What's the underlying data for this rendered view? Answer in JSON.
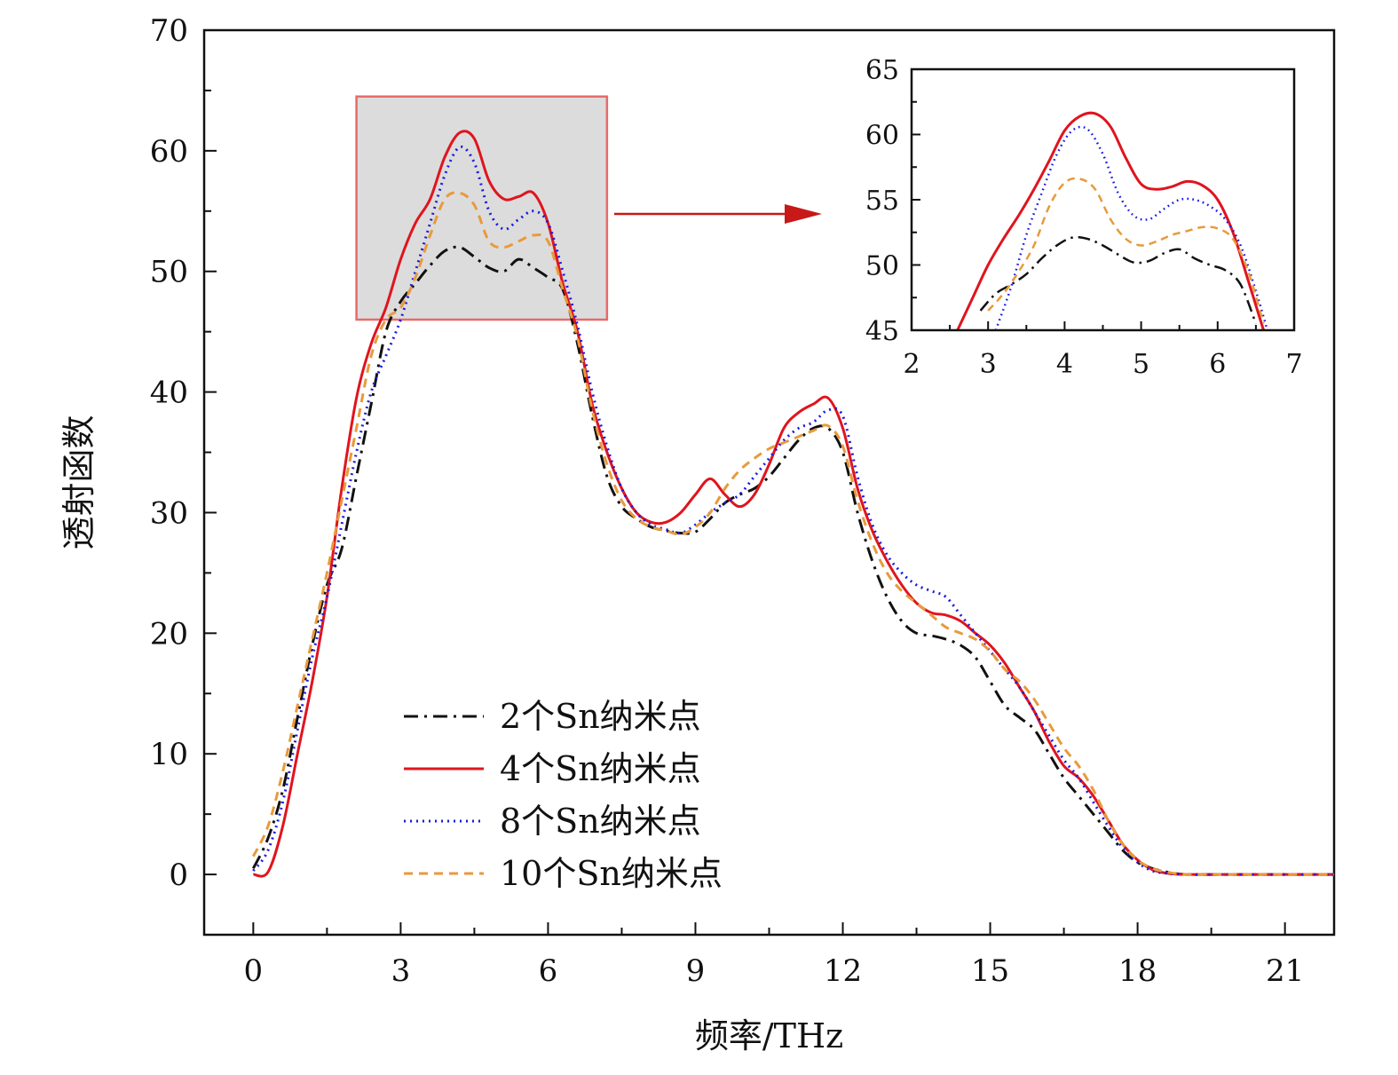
{
  "chart_data": {
    "type": "line",
    "title": "",
    "xlabel": "频率/THz",
    "ylabel": "透射函数",
    "xlim": [
      -1,
      22
    ],
    "ylim": [
      -5,
      70
    ],
    "xticks": [
      0,
      3,
      6,
      9,
      12,
      15,
      18,
      21
    ],
    "yticks": [
      0,
      10,
      20,
      30,
      40,
      50,
      60,
      70
    ],
    "grid": false,
    "legend_position": "lower-center",
    "highlight_region": {
      "x": [
        2.1,
        7.2
      ],
      "y": [
        46,
        64.5
      ]
    },
    "series": [
      {
        "name": "2个Sn纳米点",
        "color": "#111111",
        "style": "dash-dot",
        "x": [
          0,
          0.3,
          0.6,
          0.9,
          1.2,
          1.5,
          1.8,
          2.1,
          2.4,
          2.7,
          3.0,
          3.3,
          3.6,
          3.9,
          4.2,
          4.5,
          4.8,
          5.1,
          5.4,
          5.7,
          6.0,
          6.3,
          6.6,
          6.9,
          7.2,
          7.5,
          7.8,
          8.1,
          8.4,
          8.7,
          9.0,
          9.3,
          9.6,
          9.9,
          10.2,
          10.5,
          10.8,
          11.1,
          11.4,
          11.7,
          12.0,
          12.3,
          12.6,
          12.9,
          13.2,
          13.5,
          13.8,
          14.1,
          14.4,
          14.7,
          15.0,
          15.3,
          15.6,
          15.9,
          16.2,
          16.5,
          16.8,
          17.1,
          17.4,
          17.7,
          18.0,
          18.3,
          18.6,
          19.0,
          20.0,
          21.0,
          22.0
        ],
        "y": [
          0.5,
          3,
          7,
          13,
          19,
          24,
          27,
          33,
          39,
          45,
          47.5,
          49,
          50.5,
          51.7,
          52,
          51.2,
          50.3,
          50,
          51,
          50.3,
          49.5,
          48.5,
          44,
          38,
          33,
          30.5,
          29.5,
          28.8,
          28.5,
          28.3,
          28.4,
          29.5,
          30.8,
          31.5,
          32,
          33,
          34.5,
          36,
          37,
          37,
          35,
          30,
          26,
          23,
          21,
          20,
          19.8,
          19.5,
          19,
          18,
          16,
          14,
          13,
          12,
          10,
          8,
          6.5,
          5,
          3.5,
          2,
          1,
          0.5,
          0.2,
          0,
          0,
          0,
          0
        ]
      },
      {
        "name": "4个Sn纳米点",
        "color": "#e0141e",
        "style": "solid",
        "x": [
          0,
          0.3,
          0.6,
          0.9,
          1.2,
          1.5,
          1.8,
          2.1,
          2.4,
          2.7,
          3.0,
          3.3,
          3.6,
          3.9,
          4.2,
          4.5,
          4.8,
          5.1,
          5.4,
          5.7,
          6.0,
          6.3,
          6.6,
          6.9,
          7.2,
          7.5,
          7.8,
          8.1,
          8.4,
          8.7,
          9.0,
          9.3,
          9.6,
          9.9,
          10.2,
          10.5,
          10.8,
          11.1,
          11.4,
          11.7,
          12.0,
          12.3,
          12.6,
          12.9,
          13.2,
          13.5,
          13.8,
          14.1,
          14.4,
          14.7,
          15.0,
          15.3,
          15.6,
          15.9,
          16.2,
          16.5,
          16.8,
          17.1,
          17.4,
          17.7,
          18.0,
          18.3,
          18.6,
          19.0,
          20.0,
          21.0,
          22.0
        ],
        "y": [
          0,
          0.2,
          4,
          10,
          16,
          23,
          32,
          39.5,
          44,
          47,
          51,
          54,
          56,
          59.5,
          61.5,
          61,
          57.5,
          56,
          56.2,
          56.5,
          54,
          49,
          45,
          39,
          35,
          32,
          30,
          29.2,
          29.2,
          30,
          31.5,
          32.8,
          31.5,
          30.5,
          31.5,
          34,
          37,
          38.3,
          39,
          39.5,
          37,
          32,
          28.5,
          26,
          24,
          22.5,
          21.7,
          21.5,
          21,
          20,
          19,
          17.5,
          15.5,
          13.5,
          11,
          9,
          8,
          6.5,
          4.5,
          2.5,
          1.2,
          0.4,
          0.1,
          0,
          0,
          0,
          0
        ]
      },
      {
        "name": "8个Sn纳米点",
        "color": "#1a1ae0",
        "style": "dotted",
        "x": [
          0,
          0.3,
          0.6,
          0.9,
          1.2,
          1.5,
          1.8,
          2.1,
          2.4,
          2.7,
          3.0,
          3.3,
          3.6,
          3.9,
          4.2,
          4.5,
          4.8,
          5.1,
          5.4,
          5.7,
          6.0,
          6.3,
          6.6,
          6.9,
          7.2,
          7.5,
          7.8,
          8.1,
          8.4,
          8.7,
          9.0,
          9.3,
          9.6,
          9.9,
          10.2,
          10.5,
          10.8,
          11.1,
          11.4,
          11.7,
          12.0,
          12.3,
          12.6,
          12.9,
          13.2,
          13.5,
          13.8,
          14.1,
          14.4,
          14.7,
          15.0,
          15.3,
          15.6,
          15.9,
          16.2,
          16.5,
          16.8,
          17.1,
          17.4,
          17.7,
          18.0,
          18.3,
          18.6,
          19.0,
          20.0,
          21.0,
          22.0
        ],
        "y": [
          0.3,
          2,
          6,
          12,
          18,
          23,
          29,
          35,
          40,
          43,
          46,
          50,
          54,
          58,
          60.3,
          59,
          55,
          53.5,
          54.3,
          55,
          54,
          50,
          45.5,
          40,
          35.5,
          32,
          30,
          29,
          28.6,
          28.3,
          29,
          30,
          30.8,
          31.5,
          33,
          34.5,
          36,
          37,
          37.5,
          38.5,
          38,
          33,
          29,
          26.5,
          25,
          24,
          23.5,
          23,
          21.5,
          20,
          18.5,
          17,
          15.5,
          13.5,
          11.5,
          9.5,
          8,
          6,
          4,
          2.2,
          1,
          0.3,
          0.1,
          0,
          0,
          0,
          0
        ]
      },
      {
        "name": "10个Sn纳米点",
        "color": "#e89a3c",
        "style": "dashed",
        "x": [
          0,
          0.3,
          0.6,
          0.9,
          1.2,
          1.5,
          1.8,
          2.1,
          2.4,
          2.7,
          3.0,
          3.3,
          3.6,
          3.9,
          4.2,
          4.5,
          4.8,
          5.1,
          5.4,
          5.7,
          6.0,
          6.3,
          6.6,
          6.9,
          7.2,
          7.5,
          7.8,
          8.1,
          8.4,
          8.7,
          9.0,
          9.3,
          9.6,
          9.9,
          10.2,
          10.5,
          10.8,
          11.1,
          11.4,
          11.7,
          12.0,
          12.3,
          12.6,
          12.9,
          13.2,
          13.5,
          13.8,
          14.1,
          14.4,
          14.7,
          15.0,
          15.3,
          15.6,
          15.9,
          16.2,
          16.5,
          16.8,
          17.1,
          17.4,
          17.7,
          18.0,
          18.3,
          18.6,
          19.0,
          20.0,
          21.0,
          22.0
        ],
        "y": [
          1.5,
          4,
          8.5,
          14,
          19.5,
          25,
          31,
          37,
          43,
          46,
          47,
          49.5,
          53,
          56,
          56.5,
          55.5,
          52.5,
          52,
          52.5,
          53,
          52.5,
          48.5,
          44.5,
          38.5,
          34,
          31,
          29.5,
          28.8,
          28.5,
          28.2,
          28.8,
          30,
          32,
          33.5,
          34.5,
          35.3,
          35.8,
          36.3,
          36.8,
          37.2,
          35.5,
          31,
          27.5,
          25,
          23.5,
          22.5,
          21.5,
          20.5,
          20,
          19.5,
          18.5,
          17,
          16,
          14.5,
          12.5,
          10.5,
          9,
          7,
          4.5,
          2.5,
          1.2,
          0.5,
          0.2,
          0,
          0,
          0,
          0
        ]
      }
    ],
    "inset": {
      "type": "line",
      "xlim": [
        2,
        7
      ],
      "ylim": [
        45,
        65
      ],
      "xticks": [
        2,
        3,
        4,
        5,
        6,
        7
      ],
      "yticks": [
        45,
        50,
        55,
        60,
        65
      ],
      "series": [
        {
          "name": "2个Sn纳米点",
          "color": "#111111",
          "style": "dash-dot",
          "x": [
            2.9,
            3.1,
            3.3,
            3.5,
            3.7,
            3.9,
            4.1,
            4.3,
            4.5,
            4.7,
            4.9,
            5.1,
            5.3,
            5.5,
            5.7,
            5.9,
            6.1,
            6.3,
            6.5
          ],
          "y": [
            46.5,
            47.8,
            48.5,
            49.3,
            50.5,
            51.5,
            52.1,
            52.0,
            51.5,
            50.8,
            50.2,
            50.3,
            50.9,
            51.2,
            50.5,
            50.0,
            49.6,
            48.5,
            45.5
          ]
        },
        {
          "name": "4个Sn纳米点",
          "color": "#e0141e",
          "style": "solid",
          "x": [
            2.6,
            2.8,
            3.0,
            3.2,
            3.4,
            3.6,
            3.8,
            4.0,
            4.2,
            4.4,
            4.6,
            4.8,
            5.0,
            5.2,
            5.4,
            5.6,
            5.8,
            6.0,
            6.2,
            6.4,
            6.6
          ],
          "y": [
            45.0,
            47.5,
            50.0,
            52.0,
            53.8,
            55.8,
            58.0,
            60.3,
            61.4,
            61.6,
            60.6,
            58.2,
            56.2,
            55.8,
            56.0,
            56.4,
            56.1,
            55.0,
            52.5,
            48.8,
            45.0
          ]
        },
        {
          "name": "8个Sn纳米点",
          "color": "#1a1ae0",
          "style": "dotted",
          "x": [
            3.1,
            3.3,
            3.5,
            3.7,
            3.9,
            4.1,
            4.3,
            4.5,
            4.7,
            4.9,
            5.1,
            5.3,
            5.5,
            5.7,
            5.9,
            6.1,
            6.3,
            6.5,
            6.65
          ],
          "y": [
            45.0,
            48.3,
            52.3,
            55.5,
            58.5,
            60.3,
            60.4,
            58.5,
            55.5,
            53.8,
            53.5,
            54.3,
            55.0,
            55.0,
            54.5,
            53.5,
            51.5,
            48.0,
            45.0
          ]
        },
        {
          "name": "10个Sn纳米点",
          "color": "#e89a3c",
          "style": "dashed",
          "x": [
            3.0,
            3.2,
            3.4,
            3.6,
            3.8,
            4.0,
            4.2,
            4.4,
            4.6,
            4.8,
            5.0,
            5.2,
            5.4,
            5.6,
            5.8,
            6.0,
            6.2,
            6.4,
            6.6
          ],
          "y": [
            46.5,
            47.8,
            49.5,
            51.5,
            54.5,
            56.3,
            56.6,
            55.8,
            53.5,
            52.0,
            51.5,
            51.8,
            52.3,
            52.6,
            52.9,
            52.8,
            52.0,
            49.5,
            45.5
          ]
        }
      ]
    }
  }
}
